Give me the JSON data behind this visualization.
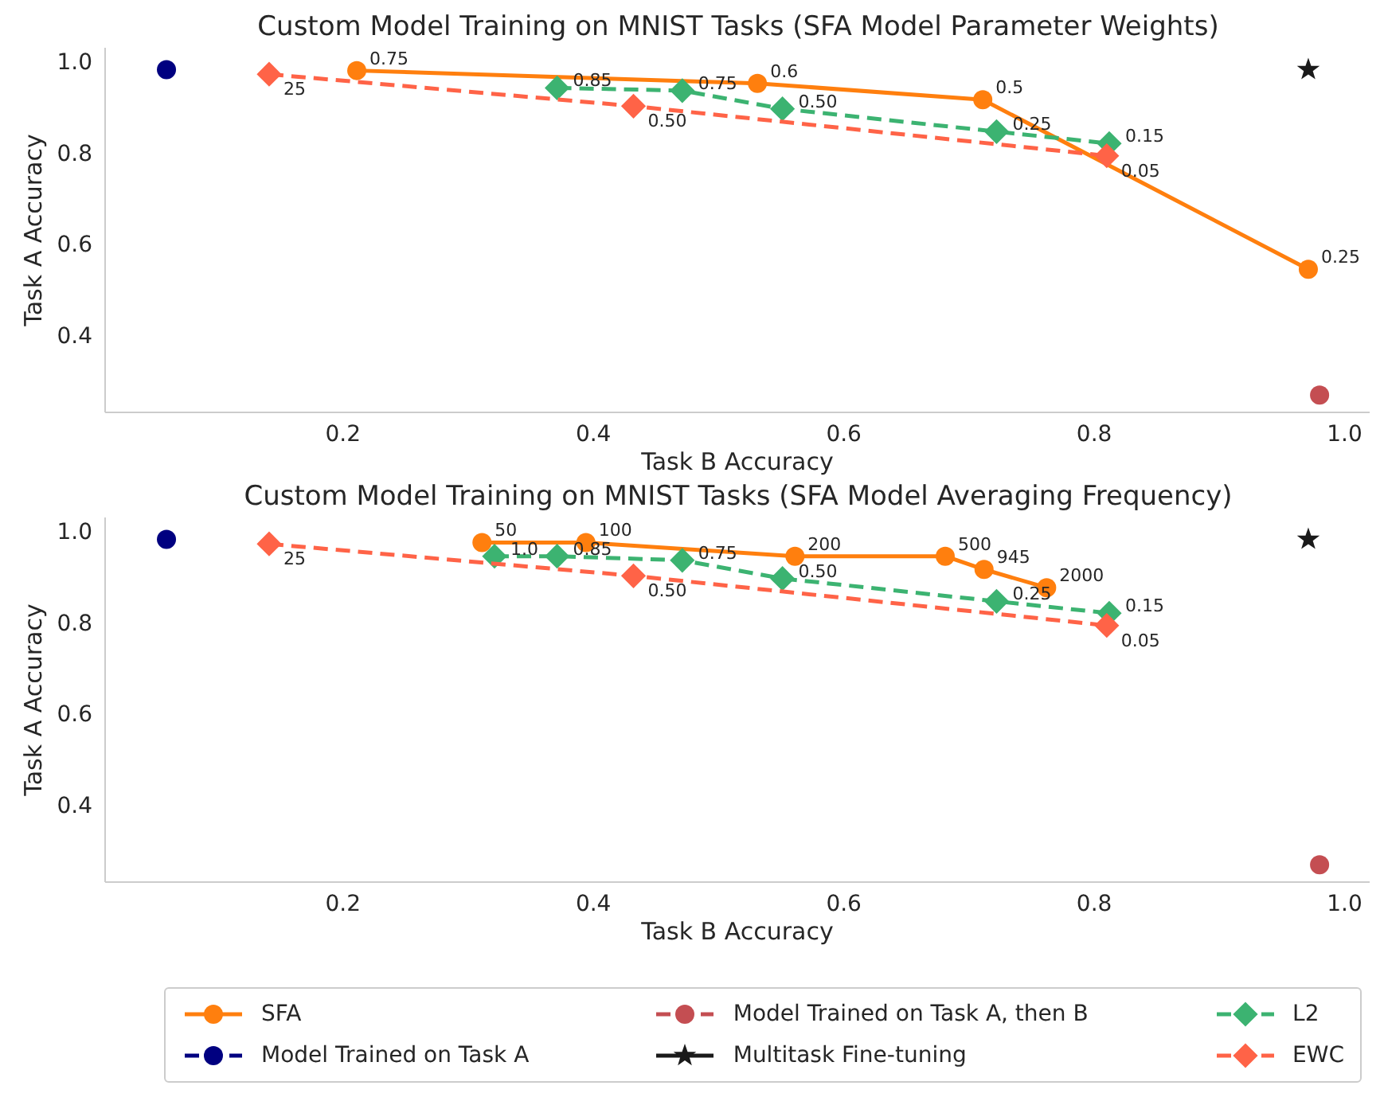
{
  "chart_data": [
    {
      "type": "line",
      "title": "Custom Model Training on MNIST Tasks (SFA Model Parameter Weights)",
      "xlabel": "Task B Accuracy",
      "ylabel": "Task A Accuracy",
      "xlim": [
        0.01,
        1.02
      ],
      "ylim": [
        0.23,
        1.03
      ],
      "xticks": [
        0.2,
        0.4,
        0.6,
        0.8,
        {
          "value": 1,
          "label": "1.0"
        }
      ],
      "yticks": [
        0.4,
        0.6,
        0.8,
        {
          "value": 1,
          "label": "1.0"
        }
      ],
      "grid": false,
      "legend": "bottom",
      "series": [
        {
          "name": "SFA",
          "color": "#ff7f0e",
          "marker": "circle",
          "line_style": "solid",
          "x": [
            0.211,
            0.531,
            0.711,
            0.971
          ],
          "values": [
            0.98,
            0.952,
            0.916,
            0.544
          ]
        },
        {
          "name": "Model Trained on Task A",
          "color": "#000080",
          "marker": "circle",
          "line_style": "dashed",
          "x": [
            0.059
          ],
          "values": [
            0.982
          ]
        },
        {
          "name": "Model Trained on Task A, then B",
          "color": "#c44e52",
          "marker": "circle",
          "line_style": "dashed",
          "x": [
            0.98
          ],
          "values": [
            0.268
          ]
        },
        {
          "name": "Multitask Fine-tuning",
          "color": "#1a1a1a",
          "marker": "star",
          "line_style": "solid",
          "x": [
            0.971
          ],
          "values": [
            0.982
          ]
        },
        {
          "name": "L2",
          "color": "#3cb371",
          "marker": "diamond",
          "line_style": "dashed",
          "x": [
            0.371,
            0.471,
            0.551,
            0.722,
            0.812
          ],
          "values": [
            0.942,
            0.936,
            0.896,
            0.846,
            0.82
          ]
        },
        {
          "name": "EWC",
          "color": "#ff6347",
          "marker": "diamond",
          "line_style": "dashed",
          "x": [
            0.141,
            0.432,
            0.81
          ],
          "values": [
            0.972,
            0.902,
            0.793
          ]
        }
      ],
      "annotations": [
        {
          "text": "0.75",
          "x": 0.211,
          "y": 0.98
        },
        {
          "text": "0.6",
          "x": 0.531,
          "y": 0.952
        },
        {
          "text": "0.5",
          "x": 0.711,
          "y": 0.916
        },
        {
          "text": "0.25",
          "x": 0.971,
          "y": 0.544
        },
        {
          "text": "0.85",
          "x": 0.371,
          "y": 0.942
        },
        {
          "text": "0.75",
          "x": 0.471,
          "y": 0.936
        },
        {
          "text": "0.50",
          "x": 0.551,
          "y": 0.896
        },
        {
          "text": "0.25",
          "x": 0.722,
          "y": 0.846
        },
        {
          "text": "0.15",
          "x": 0.812,
          "y": 0.82
        },
        {
          "text": "25",
          "x": 0.141,
          "y": 0.972
        },
        {
          "text": "0.50",
          "x": 0.432,
          "y": 0.902
        },
        {
          "text": "0.05",
          "x": 0.81,
          "y": 0.793
        }
      ]
    },
    {
      "type": "line",
      "title": "Custom Model Training on MNIST Tasks (SFA Model Averaging Frequency)",
      "xlabel": "Task B Accuracy",
      "ylabel": "Task A Accuracy",
      "xlim": [
        0.01,
        1.02
      ],
      "ylim": [
        0.23,
        1.03
      ],
      "xticks": [
        0.2,
        0.4,
        0.6,
        0.8,
        {
          "value": 1,
          "label": "1.0"
        }
      ],
      "yticks": [
        0.4,
        0.6,
        0.8,
        {
          "value": 1,
          "label": "1.0"
        }
      ],
      "grid": false,
      "legend": "bottom",
      "series": [
        {
          "name": "SFA",
          "color": "#ff7f0e",
          "marker": "circle",
          "line_style": "solid",
          "x": [
            0.311,
            0.394,
            0.561,
            0.681,
            0.712,
            0.762
          ],
          "values": [
            0.975,
            0.975,
            0.945,
            0.945,
            0.916,
            0.876
          ]
        },
        {
          "name": "Model Trained on Task A",
          "color": "#000080",
          "marker": "circle",
          "line_style": "dashed",
          "x": [
            0.059
          ],
          "values": [
            0.982
          ]
        },
        {
          "name": "Model Trained on Task A, then B",
          "color": "#c44e52",
          "marker": "circle",
          "line_style": "dashed",
          "x": [
            0.98
          ],
          "values": [
            0.268
          ]
        },
        {
          "name": "Multitask Fine-tuning",
          "color": "#1a1a1a",
          "marker": "star",
          "line_style": "solid",
          "x": [
            0.971
          ],
          "values": [
            0.982
          ]
        },
        {
          "name": "L2",
          "color": "#3cb371",
          "marker": "diamond",
          "line_style": "dashed",
          "x": [
            0.321,
            0.371,
            0.471,
            0.551,
            0.722,
            0.812
          ],
          "values": [
            0.945,
            0.945,
            0.936,
            0.896,
            0.846,
            0.82
          ]
        },
        {
          "name": "EWC",
          "color": "#ff6347",
          "marker": "diamond",
          "line_style": "dashed",
          "x": [
            0.141,
            0.432,
            0.81
          ],
          "values": [
            0.972,
            0.902,
            0.793
          ]
        }
      ],
      "annotations": [
        {
          "text": "50",
          "x": 0.311,
          "y": 0.975
        },
        {
          "text": "100",
          "x": 0.394,
          "y": 0.975
        },
        {
          "text": "200",
          "x": 0.561,
          "y": 0.945
        },
        {
          "text": "500",
          "x": 0.681,
          "y": 0.945
        },
        {
          "text": "945",
          "x": 0.712,
          "y": 0.916
        },
        {
          "text": "2000",
          "x": 0.762,
          "y": 0.876
        },
        {
          "text": "1.0",
          "x": 0.321,
          "y": 0.945
        },
        {
          "text": "0.85",
          "x": 0.371,
          "y": 0.945
        },
        {
          "text": "0.75",
          "x": 0.471,
          "y": 0.936
        },
        {
          "text": "0.50",
          "x": 0.551,
          "y": 0.896
        },
        {
          "text": "0.25",
          "x": 0.722,
          "y": 0.846
        },
        {
          "text": "0.15",
          "x": 0.812,
          "y": 0.82
        },
        {
          "text": "25",
          "x": 0.141,
          "y": 0.972
        },
        {
          "text": "0.50",
          "x": 0.432,
          "y": 0.902
        },
        {
          "text": "0.05",
          "x": 0.81,
          "y": 0.793
        }
      ]
    }
  ]
}
